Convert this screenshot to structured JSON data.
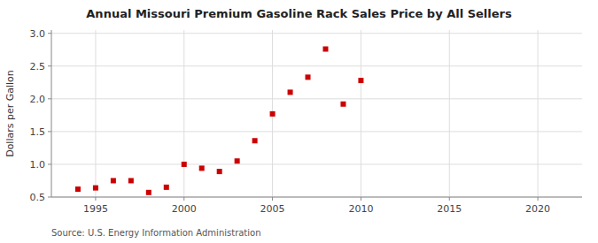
{
  "chart_data": {
    "type": "scatter",
    "title": "Annual Missouri Premium Gasoline Rack Sales Price by All Sellers",
    "ylabel": "Dollars per Gallon",
    "source": "Source: U.S. Energy Information Administration",
    "x": [
      1994,
      1995,
      1996,
      1997,
      1998,
      1999,
      2000,
      2001,
      2002,
      2003,
      2004,
      2005,
      2006,
      2007,
      2008,
      2009,
      2010
    ],
    "values": [
      0.62,
      0.64,
      0.75,
      0.75,
      0.57,
      0.65,
      1.0,
      0.94,
      0.89,
      1.05,
      1.36,
      1.77,
      2.1,
      2.33,
      2.76,
      1.92,
      2.28
    ],
    "color": "#cc0000",
    "marker": "square",
    "xlim": [
      1992.5,
      2022.5
    ],
    "ylim": [
      0.5,
      3.05
    ],
    "xticks": [
      1995,
      2000,
      2005,
      2010,
      2015,
      2020
    ],
    "yticks": [
      0.5,
      {
        "value": 1.0,
        "label": "1.0"
      },
      1.5,
      {
        "value": 2.0,
        "label": "2.0"
      },
      2.5,
      {
        "value": 3.0,
        "label": "3.0"
      }
    ],
    "grid": true
  }
}
